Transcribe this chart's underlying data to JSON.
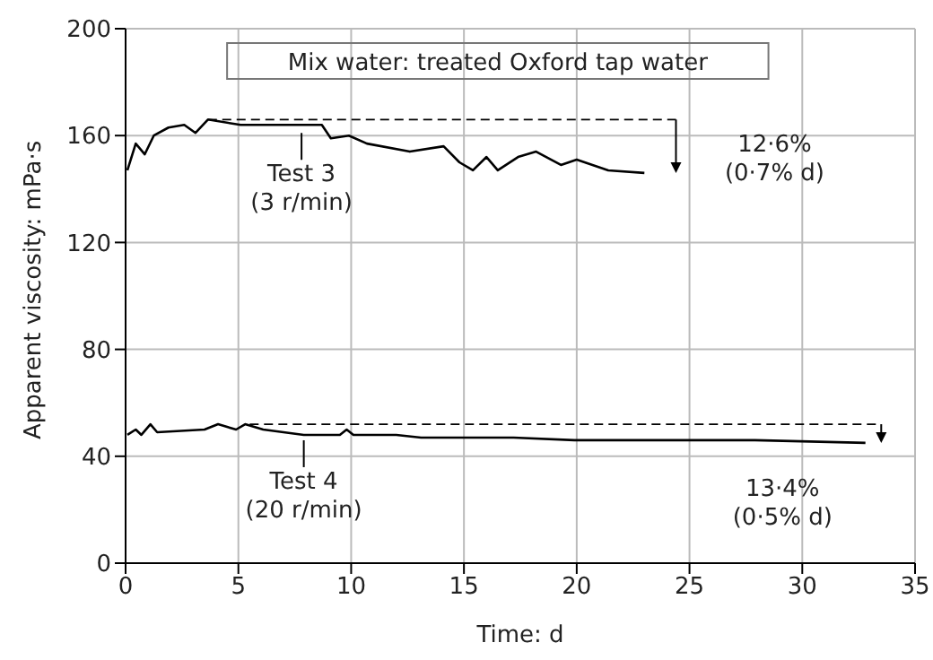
{
  "chart_data": {
    "type": "line",
    "title": "Mix water: treated Oxford tap water",
    "xlabel": "Time: d",
    "ylabel": "Apparent viscosity: mPa·s",
    "xlim": [
      0,
      35
    ],
    "xticks": [
      0,
      5,
      10,
      15,
      20,
      25,
      30,
      35
    ],
    "ylim": [
      0,
      200
    ],
    "yticks": [
      0,
      40,
      80,
      120,
      160,
      200
    ],
    "grid": true,
    "marker": "none",
    "line_style": "solid",
    "series": [
      {
        "color": "#000000",
        "x": [
          0.08,
          0.45,
          0.85,
          1.25,
          1.9,
          2.6,
          3.1,
          3.65,
          5.1,
          6.7,
          7.8,
          8.7,
          9.1,
          9.9,
          10.7,
          12.6,
          14.1,
          14.8,
          15.4,
          16,
          16.5,
          17.4,
          18.2,
          19.3,
          20,
          21.4,
          23
        ],
        "values": [
          147,
          157,
          153,
          160,
          163,
          164,
          161,
          166,
          164,
          164,
          164,
          164,
          159,
          160,
          157,
          154,
          156,
          150,
          147,
          152,
          147,
          152,
          154,
          149,
          151,
          147,
          146
        ]
      },
      {
        "color": "#000000",
        "x": [
          0.08,
          0.45,
          0.7,
          1.1,
          1.4,
          3.5,
          4.1,
          4.9,
          5.3,
          6.1,
          7.9,
          9.5,
          9.8,
          10.1,
          12,
          13.1,
          15.4,
          17.2,
          19.9,
          22.5,
          25.2,
          27.9,
          32.8
        ],
        "values": [
          48,
          50,
          48,
          52,
          49,
          50,
          52,
          50,
          52,
          50,
          48,
          48,
          50,
          48,
          48,
          47,
          47,
          47,
          46,
          46,
          46,
          46,
          45
        ]
      },
      {
        "color": "#000000",
        "line_style": "dashed",
        "x": [
          3.65,
          24.4
        ],
        "values": [
          166,
          166
        ]
      },
      {
        "color": "#000000",
        "line_style": "dashed",
        "x": [
          5.5,
          33.5
        ],
        "values": [
          52,
          52
        ]
      }
    ],
    "annotations": [
      {
        "text": "Test 3\n(3 r/min)",
        "x": 7.8,
        "y": 163
      },
      {
        "text": "Test 4\n(20 r/min)",
        "x": 7.9,
        "y": 48
      },
      "12·6%\n(0·7% d)",
      "13·4%\n(0·5% d)"
    ]
  }
}
